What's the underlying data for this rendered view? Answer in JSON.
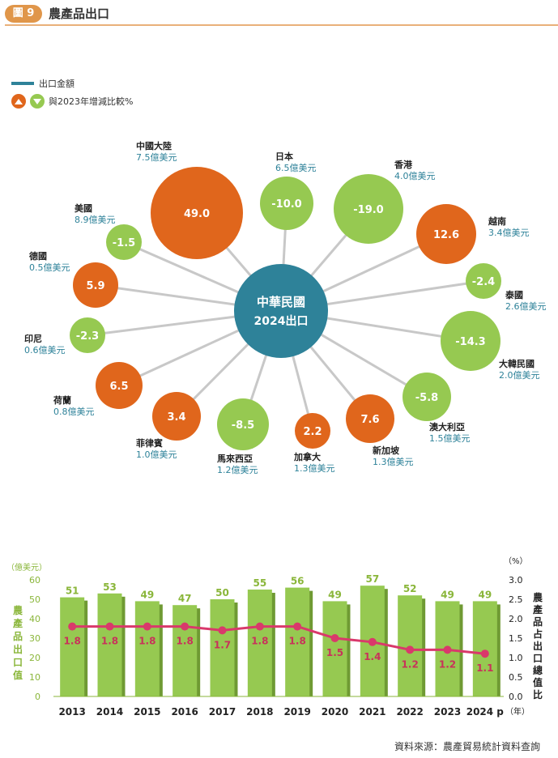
{
  "header": {
    "figure_label": "圖 9",
    "title": "農產品出口"
  },
  "legend": {
    "export_amount": "出口金額",
    "change_vs_2023": "與2023年增減比較%"
  },
  "colors": {
    "increase": "#e0661c",
    "decrease": "#96c951",
    "center": "#2e8299",
    "bar": "#96c951",
    "line": "#d9396b"
  },
  "chart_data": [
    {
      "type": "bubble",
      "center": {
        "line1": "中華民國",
        "line2": "2024出口"
      },
      "unit_suffix": "億美元",
      "markets": [
        {
          "name": "中國大陸",
          "amount": "7.5億美元",
          "change": "49.0",
          "direction": "up"
        },
        {
          "name": "日本",
          "amount": "6.5億美元",
          "change": "-10.0",
          "direction": "down"
        },
        {
          "name": "香港",
          "amount": "4.0億美元",
          "change": "-19.0",
          "direction": "down"
        },
        {
          "name": "越南",
          "amount": "3.4億美元",
          "change": "12.6",
          "direction": "up"
        },
        {
          "name": "泰國",
          "amount": "2.6億美元",
          "change": "-2.4",
          "direction": "down"
        },
        {
          "name": "大韓民國",
          "amount": "2.0億美元",
          "change": "-14.3",
          "direction": "down"
        },
        {
          "name": "澳大利亞",
          "amount": "1.5億美元",
          "change": "-5.8",
          "direction": "down"
        },
        {
          "name": "新加坡",
          "amount": "1.3億美元",
          "change": "7.6",
          "direction": "up"
        },
        {
          "name": "加拿大",
          "amount": "1.3億美元",
          "change": "2.2",
          "direction": "up"
        },
        {
          "name": "馬來西亞",
          "amount": "1.2億美元",
          "change": "-8.5",
          "direction": "down"
        },
        {
          "name": "菲律賓",
          "amount": "1.0億美元",
          "change": "3.4",
          "direction": "up"
        },
        {
          "name": "荷蘭",
          "amount": "0.8億美元",
          "change": "6.5",
          "direction": "up"
        },
        {
          "name": "印尼",
          "amount": "0.6億美元",
          "change": "-2.3",
          "direction": "down"
        },
        {
          "name": "德國",
          "amount": "0.5億美元",
          "change": "5.9",
          "direction": "up"
        },
        {
          "name": "美國",
          "amount": "8.9億美元",
          "change": "-1.5",
          "direction": "down"
        }
      ]
    },
    {
      "type": "bar",
      "categories": [
        "2013",
        "2014",
        "2015",
        "2016",
        "2017",
        "2018",
        "2019",
        "2020",
        "2021",
        "2022",
        "2023",
        "2024 p"
      ],
      "values": [
        51,
        53,
        49,
        47,
        50,
        55,
        56,
        49,
        57,
        52,
        49,
        49
      ],
      "ylabel": "農產品出口值",
      "yunit": "（億美元）",
      "ylim": [
        0,
        60
      ],
      "yticks": [
        0,
        10,
        20,
        30,
        40,
        50,
        60
      ],
      "line_series": {
        "values": [
          1.8,
          1.8,
          1.8,
          1.8,
          1.7,
          1.8,
          1.8,
          1.5,
          1.4,
          1.2,
          1.2,
          1.1
        ],
        "ylabel": "農產品占出口總值比",
        "yunit": "（%）",
        "ylim": [
          0,
          3
        ],
        "yticks": [
          "0.0",
          "0.5",
          "1.0",
          "1.5",
          "2.0",
          "2.5",
          "3.0"
        ]
      },
      "xunit": "（年）"
    }
  ],
  "source": "資料來源：農產貿易統計資料查詢"
}
